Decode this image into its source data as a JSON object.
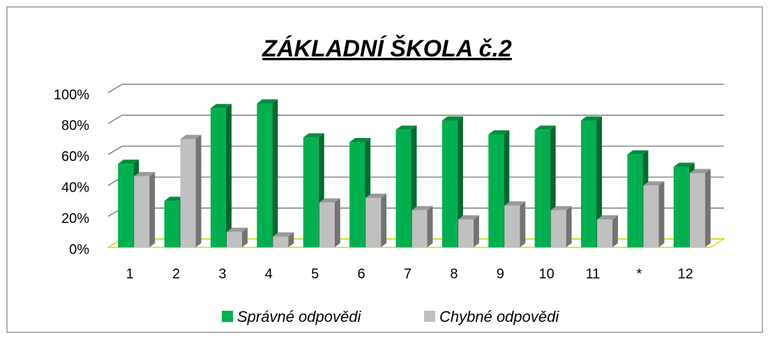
{
  "chart_data": {
    "type": "bar3d",
    "title": "ZÁKLADNÍ ŠKOLA č.2",
    "categories": [
      "1",
      "2",
      "3",
      "4",
      "5",
      "6",
      "7",
      "8",
      "9",
      "10",
      "11",
      "*",
      "12"
    ],
    "series": [
      {
        "name": "Správné odpovědi",
        "color": "#00b04f",
        "values": [
          54,
          30,
          90,
          93,
          71,
          68,
          76,
          82,
          73,
          76,
          82,
          60,
          52
        ]
      },
      {
        "name": "Chybné odpovědi",
        "color": "#c0c0c0",
        "values": [
          46,
          70,
          10,
          7,
          29,
          32,
          24,
          18,
          27,
          24,
          18,
          40,
          48
        ]
      }
    ],
    "ylim": [
      0,
      100
    ],
    "yticks": [
      {
        "value": 0,
        "label": "0%"
      },
      {
        "value": 20,
        "label": "20%"
      },
      {
        "value": 40,
        "label": "40%"
      },
      {
        "value": 60,
        "label": "60%"
      },
      {
        "value": 80,
        "label": "80%"
      },
      {
        "value": 100,
        "label": "100%"
      }
    ],
    "grid": true,
    "legend": "bottom"
  }
}
